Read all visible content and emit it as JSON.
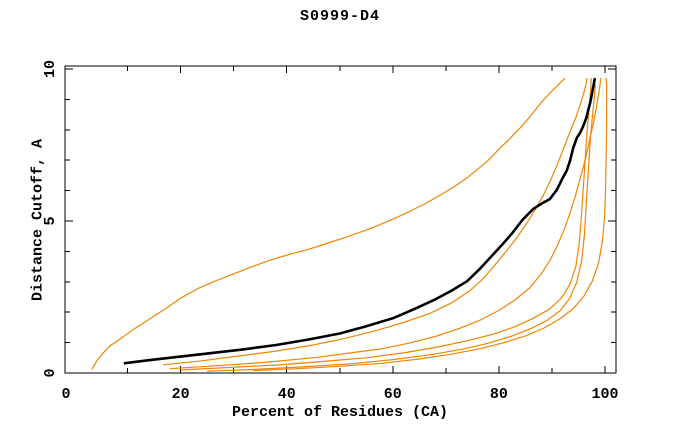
{
  "page": {
    "background": "#ffffff"
  },
  "chart_data": {
    "type": "line",
    "title": "S0999-D4",
    "xlabel": "Percent of Residues (CA)",
    "ylabel": "Distance Cutoff, A",
    "xlim": [
      0,
      100
    ],
    "ylim": [
      0,
      10
    ],
    "grid": false,
    "legend": "none",
    "frame": "box",
    "x_minor_ticks": [
      10,
      20,
      30,
      40,
      50,
      60,
      70,
      80,
      90,
      100
    ],
    "x_tick_values": [
      0,
      20,
      40,
      60,
      80,
      100
    ],
    "x_tick_labels": [
      "0",
      "20",
      "40",
      "60",
      "80",
      "100"
    ],
    "y_minor_ticks": [
      1,
      2,
      3,
      4,
      5,
      6,
      7,
      8,
      9,
      10
    ],
    "y_tick_values": [
      0,
      5,
      10
    ],
    "y_tick_labels": [
      "0",
      "5",
      "10"
    ],
    "colors": {
      "model_lines": "#ee8504",
      "reference_line": "#000000",
      "frame": "#000000",
      "background": "#ffffff"
    },
    "series": [
      {
        "name": "orange-model-1",
        "color": "#ee8504",
        "width": 1.2,
        "points": [
          [
            3.3,
            0.12
          ],
          [
            4.2,
            0.4
          ],
          [
            5.2,
            0.62
          ],
          [
            6.6,
            0.88
          ],
          [
            8.6,
            1.12
          ],
          [
            11,
            1.42
          ],
          [
            14,
            1.76
          ],
          [
            17,
            2.1
          ],
          [
            20,
            2.46
          ],
          [
            23.5,
            2.8
          ],
          [
            27,
            3.06
          ],
          [
            30,
            3.26
          ],
          [
            33.5,
            3.5
          ],
          [
            37,
            3.72
          ],
          [
            40.5,
            3.9
          ],
          [
            44,
            4.06
          ],
          [
            47.5,
            4.26
          ],
          [
            51,
            4.46
          ],
          [
            54,
            4.64
          ],
          [
            57,
            4.84
          ],
          [
            60,
            5.06
          ],
          [
            63,
            5.3
          ],
          [
            66,
            5.56
          ],
          [
            69,
            5.86
          ],
          [
            71.5,
            6.12
          ],
          [
            74,
            6.42
          ],
          [
            76,
            6.7
          ],
          [
            78,
            7.0
          ],
          [
            80,
            7.36
          ],
          [
            82,
            7.7
          ],
          [
            84,
            8.06
          ],
          [
            86,
            8.46
          ],
          [
            88,
            8.9
          ],
          [
            89.8,
            9.24
          ],
          [
            91.3,
            9.5
          ],
          [
            92.5,
            9.7
          ]
        ]
      },
      {
        "name": "orange-model-2",
        "color": "#ee8504",
        "width": 1.2,
        "points": [
          [
            16.7,
            0.27
          ],
          [
            24,
            0.4
          ],
          [
            31,
            0.56
          ],
          [
            38,
            0.72
          ],
          [
            45,
            0.92
          ],
          [
            51,
            1.14
          ],
          [
            57,
            1.4
          ],
          [
            62,
            1.66
          ],
          [
            67,
            1.96
          ],
          [
            71,
            2.3
          ],
          [
            74.5,
            2.7
          ],
          [
            77,
            3.1
          ],
          [
            79,
            3.5
          ],
          [
            81,
            3.92
          ],
          [
            83,
            4.36
          ],
          [
            85,
            4.86
          ],
          [
            86.8,
            5.36
          ],
          [
            88.4,
            5.86
          ],
          [
            89.8,
            6.36
          ],
          [
            91,
            6.86
          ],
          [
            92,
            7.3
          ],
          [
            92.9,
            7.7
          ],
          [
            93.7,
            8.06
          ],
          [
            94.5,
            8.4
          ],
          [
            95.2,
            8.76
          ],
          [
            95.8,
            9.1
          ],
          [
            96.3,
            9.4
          ],
          [
            96.6,
            9.7
          ]
        ]
      },
      {
        "name": "orange-model-3",
        "color": "#ee8504",
        "width": 1.2,
        "points": [
          [
            18,
            0.14
          ],
          [
            25,
            0.22
          ],
          [
            32,
            0.3
          ],
          [
            39,
            0.4
          ],
          [
            46,
            0.52
          ],
          [
            52,
            0.66
          ],
          [
            58,
            0.8
          ],
          [
            63,
            0.98
          ],
          [
            68,
            1.2
          ],
          [
            72.5,
            1.46
          ],
          [
            76.5,
            1.74
          ],
          [
            80,
            2.06
          ],
          [
            83,
            2.4
          ],
          [
            85.8,
            2.8
          ],
          [
            88,
            3.26
          ],
          [
            89.8,
            3.76
          ],
          [
            91.2,
            4.26
          ],
          [
            92.4,
            4.76
          ],
          [
            93.4,
            5.26
          ],
          [
            94.3,
            5.76
          ],
          [
            95.1,
            6.26
          ],
          [
            95.9,
            6.76
          ],
          [
            96.6,
            7.26
          ],
          [
            97.2,
            7.76
          ],
          [
            97.8,
            8.2
          ],
          [
            98.3,
            8.66
          ],
          [
            98.7,
            9.06
          ],
          [
            99,
            9.4
          ],
          [
            99.2,
            9.7
          ]
        ]
      },
      {
        "name": "orange-model-4",
        "color": "#ee8504",
        "width": 1.2,
        "points": [
          [
            20,
            0.1
          ],
          [
            29,
            0.18
          ],
          [
            38,
            0.26
          ],
          [
            47,
            0.38
          ],
          [
            55,
            0.5
          ],
          [
            62,
            0.66
          ],
          [
            68,
            0.84
          ],
          [
            74,
            1.06
          ],
          [
            79,
            1.28
          ],
          [
            83,
            1.52
          ],
          [
            86.5,
            1.8
          ],
          [
            89.5,
            2.1
          ],
          [
            91.8,
            2.46
          ],
          [
            93.4,
            2.92
          ],
          [
            94.5,
            3.5
          ],
          [
            95.1,
            4.2
          ],
          [
            95.5,
            5.0
          ],
          [
            95.8,
            5.8
          ],
          [
            96.1,
            6.6
          ],
          [
            96.4,
            7.4
          ],
          [
            96.7,
            8.1
          ],
          [
            97,
            8.7
          ],
          [
            97.3,
            9.3
          ],
          [
            97.4,
            9.7
          ]
        ]
      },
      {
        "name": "orange-model-5",
        "color": "#ee8504",
        "width": 1.2,
        "points": [
          [
            25,
            0.06
          ],
          [
            34,
            0.12
          ],
          [
            43,
            0.2
          ],
          [
            52,
            0.3
          ],
          [
            60,
            0.44
          ],
          [
            67,
            0.6
          ],
          [
            73,
            0.78
          ],
          [
            78,
            0.98
          ],
          [
            82.5,
            1.22
          ],
          [
            86,
            1.46
          ],
          [
            89,
            1.72
          ],
          [
            91.5,
            2.04
          ],
          [
            93.3,
            2.44
          ],
          [
            94.7,
            3.0
          ],
          [
            95.6,
            3.7
          ],
          [
            96.1,
            4.5
          ],
          [
            96.4,
            5.35
          ],
          [
            96.7,
            6.2
          ],
          [
            97,
            7.05
          ],
          [
            97.3,
            7.85
          ],
          [
            97.7,
            8.55
          ],
          [
            98,
            9.1
          ],
          [
            98.2,
            9.5
          ]
        ]
      },
      {
        "name": "orange-model-6",
        "color": "#ee8504",
        "width": 1.2,
        "points": [
          [
            33.7,
            0.08
          ],
          [
            42,
            0.14
          ],
          [
            50,
            0.22
          ],
          [
            58,
            0.32
          ],
          [
            65,
            0.46
          ],
          [
            71,
            0.62
          ],
          [
            76.5,
            0.8
          ],
          [
            81,
            1.0
          ],
          [
            85,
            1.22
          ],
          [
            88.5,
            1.48
          ],
          [
            91.5,
            1.78
          ],
          [
            94,
            2.12
          ],
          [
            96,
            2.52
          ],
          [
            97.6,
            3.02
          ],
          [
            98.8,
            3.62
          ],
          [
            99.5,
            4.32
          ],
          [
            99.9,
            5.1
          ],
          [
            100.1,
            6.0
          ],
          [
            100.2,
            7.0
          ],
          [
            100.3,
            8.0
          ],
          [
            100.3,
            8.9
          ],
          [
            100.3,
            9.5
          ],
          [
            100.2,
            9.7
          ]
        ]
      },
      {
        "name": "black-reference",
        "color": "#000000",
        "width": 2.6,
        "points": [
          [
            9.3,
            0.32
          ],
          [
            14,
            0.42
          ],
          [
            20,
            0.54
          ],
          [
            26,
            0.66
          ],
          [
            32,
            0.78
          ],
          [
            38,
            0.92
          ],
          [
            44,
            1.1
          ],
          [
            50,
            1.3
          ],
          [
            55,
            1.54
          ],
          [
            60,
            1.8
          ],
          [
            64,
            2.1
          ],
          [
            68,
            2.42
          ],
          [
            71,
            2.7
          ],
          [
            74,
            3.02
          ],
          [
            76.5,
            3.44
          ],
          [
            78.5,
            3.82
          ],
          [
            80.5,
            4.2
          ],
          [
            82.5,
            4.6
          ],
          [
            84.5,
            5.05
          ],
          [
            86.5,
            5.4
          ],
          [
            88.3,
            5.6
          ],
          [
            89.6,
            5.72
          ],
          [
            90.9,
            6.02
          ],
          [
            92.1,
            6.44
          ],
          [
            92.8,
            6.66
          ],
          [
            93.4,
            6.98
          ],
          [
            94,
            7.4
          ],
          [
            94.7,
            7.74
          ],
          [
            95.3,
            7.9
          ],
          [
            95.9,
            8.12
          ],
          [
            96.5,
            8.4
          ],
          [
            96.8,
            8.62
          ],
          [
            97.2,
            8.88
          ],
          [
            97.5,
            9.14
          ],
          [
            97.8,
            9.42
          ],
          [
            98.1,
            9.7
          ]
        ]
      }
    ]
  }
}
